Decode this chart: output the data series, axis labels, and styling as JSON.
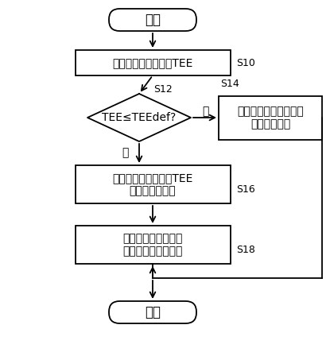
{
  "bg_color": "#ffffff",
  "line_color": "#000000",
  "text_color": "#000000",
  "nodes": {
    "start_text": "开始",
    "s10_text": "计算推断上下车时间TEE",
    "s10_label": "S10",
    "s12_text": "TEE≤TEEdef?",
    "s12_label": "S12",
    "s14_text": "设为停车时间一分钟而\n生成行驶计划",
    "s14_label": "S14",
    "s16_text": "基于推断上下车时间TEE\n而计算停车时间",
    "s16_label": "S16",
    "s18_text": "利用所计算出的停车\n时间来生成行驶计划",
    "s18_label": "S18",
    "end_text": "返回",
    "yes_text": "是",
    "no_text": "否"
  }
}
